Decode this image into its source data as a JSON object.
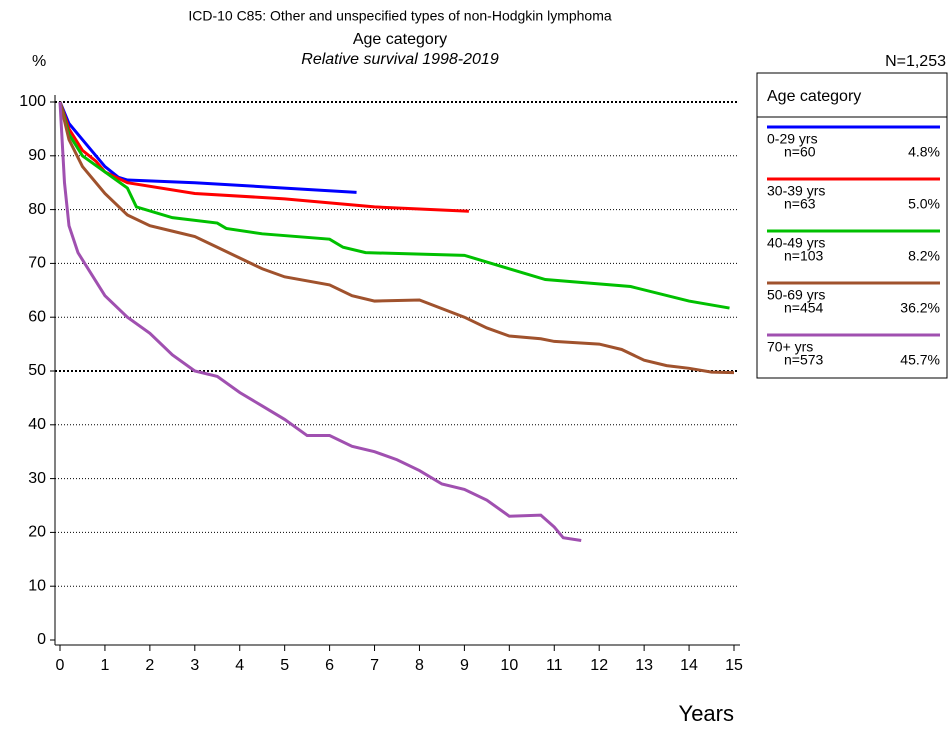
{
  "chart_data": {
    "type": "line",
    "title": "ICD-10 C85: Other and unspecified types of non-Hodgkin lymphoma",
    "subtitle": "Age category",
    "subtitle2": "Relative survival 1998-2019",
    "y_label": "%",
    "x_label": "Years",
    "total": "N=1,253",
    "legend_title": "Age category",
    "xlim": [
      0,
      15
    ],
    "xticks": [
      0,
      1,
      2,
      3,
      4,
      5,
      6,
      7,
      8,
      9,
      10,
      11,
      12,
      13,
      14,
      15
    ],
    "ylim": [
      0,
      100
    ],
    "yticks": [
      0,
      10,
      20,
      30,
      40,
      50,
      60,
      70,
      80,
      90,
      100
    ],
    "grid": true,
    "major_grid": [
      50,
      100
    ],
    "series": [
      {
        "name": "0-29 yrs",
        "n": "n=60",
        "share": "4.8%",
        "color": "#0000ff",
        "x": [
          0,
          0.2,
          0.5,
          0.8,
          1,
          1.3,
          1.5,
          3,
          5,
          6.6
        ],
        "values": [
          100,
          96,
          93,
          90,
          88,
          86,
          85.5,
          85,
          84,
          83.2
        ]
      },
      {
        "name": "30-39 yrs",
        "n": "n=63",
        "share": "5.0%",
        "color": "#ff0000",
        "x": [
          0,
          0.2,
          0.5,
          0.8,
          1,
          1.5,
          3,
          5,
          7,
          9.1
        ],
        "values": [
          100,
          95,
          91,
          89,
          87,
          85,
          83,
          82,
          80.5,
          79.7
        ]
      },
      {
        "name": "40-49 yrs",
        "n": "n=103",
        "share": "8.2%",
        "color": "#00c000",
        "x": [
          0,
          0.2,
          0.5,
          1,
          1.5,
          1.7,
          2.5,
          3.5,
          3.7,
          4.5,
          6,
          6.3,
          6.8,
          9,
          10,
          10.8,
          12.7,
          14,
          14.9
        ],
        "values": [
          100,
          94,
          90,
          87,
          84,
          80.5,
          78.5,
          77.5,
          76.5,
          75.5,
          74.5,
          73,
          72,
          71.5,
          69,
          67,
          65.7,
          63,
          61.7
        ]
      },
      {
        "name": "50-69 yrs",
        "n": "n=454",
        "share": "36.2%",
        "color": "#a0522d",
        "x": [
          0,
          0.2,
          0.5,
          1,
          1.5,
          2,
          2.5,
          3,
          3.5,
          4,
          4.5,
          5,
          6,
          6.5,
          7,
          8,
          9,
          9.5,
          10,
          10.7,
          11,
          12,
          12.5,
          13,
          13.5,
          14,
          14.5,
          15
        ],
        "values": [
          100,
          93,
          88,
          83,
          79,
          77,
          76,
          75,
          73,
          71,
          69,
          67.5,
          66,
          64,
          63,
          63.2,
          60,
          58,
          56.5,
          56,
          55.5,
          55,
          54,
          52,
          51,
          50.5,
          49.8,
          49.7
        ]
      },
      {
        "name": "70+ yrs",
        "n": "n=573",
        "share": "45.7%",
        "color": "#a050b0",
        "x": [
          0,
          0.1,
          0.2,
          0.4,
          0.7,
          1,
          1.5,
          2,
          2.5,
          3,
          3.5,
          4,
          4.5,
          5,
          5.5,
          6,
          6.5,
          7,
          7.5,
          8,
          8.5,
          9,
          9.5,
          10,
          10.7,
          11,
          11.2,
          11.6
        ],
        "values": [
          100,
          85,
          77,
          72,
          68,
          64,
          60,
          57,
          53,
          50,
          49,
          46,
          43.5,
          41,
          38,
          38,
          36,
          35,
          33.5,
          31.5,
          29,
          28,
          26,
          23,
          23.2,
          21,
          19,
          18.5
        ]
      }
    ]
  }
}
